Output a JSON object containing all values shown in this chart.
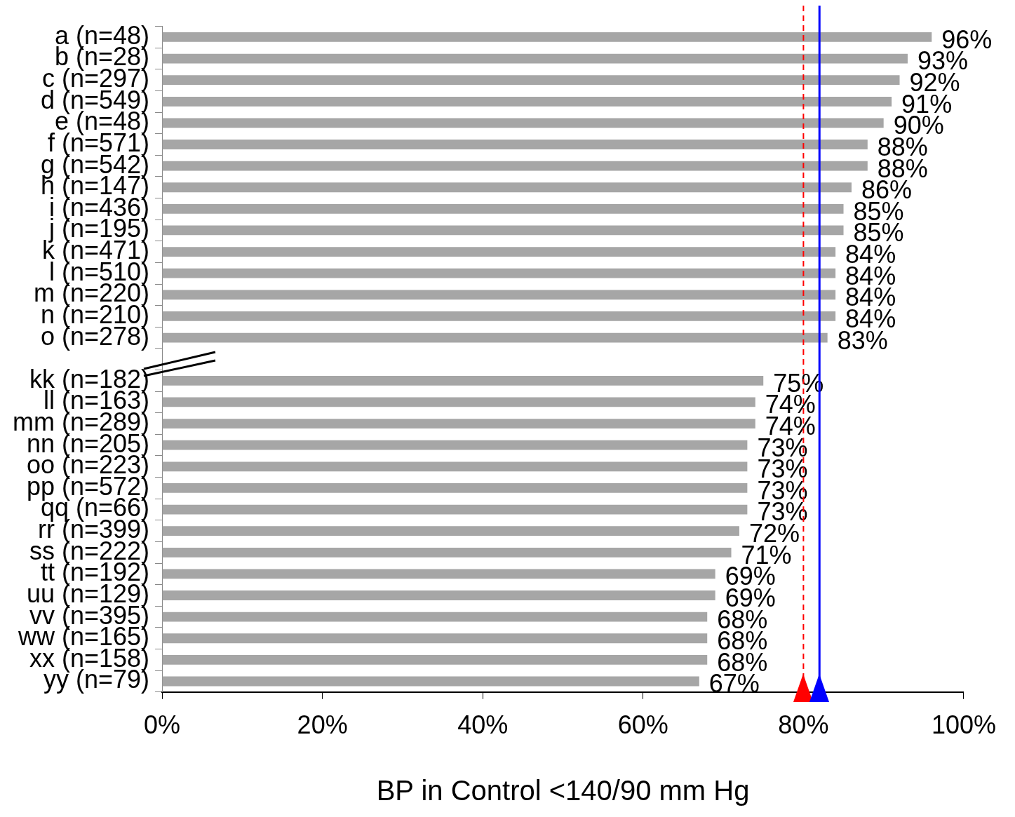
{
  "chart_data": {
    "type": "bar",
    "orientation": "horizontal",
    "xlabel": "BP in Control <140/90 mm Hg",
    "categories": [
      "a (n=48)",
      "b (n=28)",
      "c (n=297)",
      "d (n=549)",
      "e (n=48)",
      "f (n=571)",
      "g (n=542)",
      "h (n=147)",
      "i (n=436)",
      "j (n=195)",
      "k (n=471)",
      "l (n=510)",
      "m (n=220)",
      "n (n=210)",
      "o (n=278)",
      null,
      "kk (n=182)",
      "ll (n=163)",
      "mm (n=289)",
      "nn (n=205)",
      "oo (n=223)",
      "pp (n=572)",
      "qq (n=66)",
      "rr (n=399)",
      "ss (n=222)",
      "tt (n=192)",
      "uu (n=129)",
      "vv (n=395)",
      "ww (n=165)",
      "xx (n=158)",
      "yy (n=79)"
    ],
    "values": [
      96,
      93,
      92,
      91,
      90,
      88,
      88,
      86,
      85,
      85,
      84,
      84,
      84,
      84,
      83,
      null,
      75,
      74,
      74,
      73,
      73,
      73,
      73,
      72,
      71,
      69,
      69,
      68,
      68,
      68,
      67
    ],
    "value_labels": [
      "96%",
      "93%",
      "92%",
      "91%",
      "90%",
      "88%",
      "88%",
      "86%",
      "85%",
      "85%",
      "84%",
      "84%",
      "84%",
      "84%",
      "83%",
      null,
      "75%",
      "74%",
      "74%",
      "73%",
      "73%",
      "73%",
      "73%",
      "72%",
      "71%",
      "69%",
      "69%",
      "68%",
      "68%",
      "68%",
      "67%"
    ],
    "color": "#a6a6a6",
    "xlim": [
      0,
      100
    ],
    "xticks": [
      {
        "value": 0,
        "label": "0%"
      },
      {
        "value": 20,
        "label": "20%"
      },
      {
        "value": 40,
        "label": "40%"
      },
      {
        "value": 60,
        "label": "60%"
      },
      {
        "value": 80,
        "label": "80%"
      },
      {
        "value": 100,
        "label": "100%"
      }
    ],
    "ref_lines": [
      {
        "axis": "x",
        "value": 80,
        "color": "#ff0000",
        "line_style": "dashed"
      },
      {
        "axis": "x",
        "value": 82,
        "color": "#0000ff",
        "line_style": "solid"
      }
    ],
    "grid": false,
    "legend": false
  }
}
